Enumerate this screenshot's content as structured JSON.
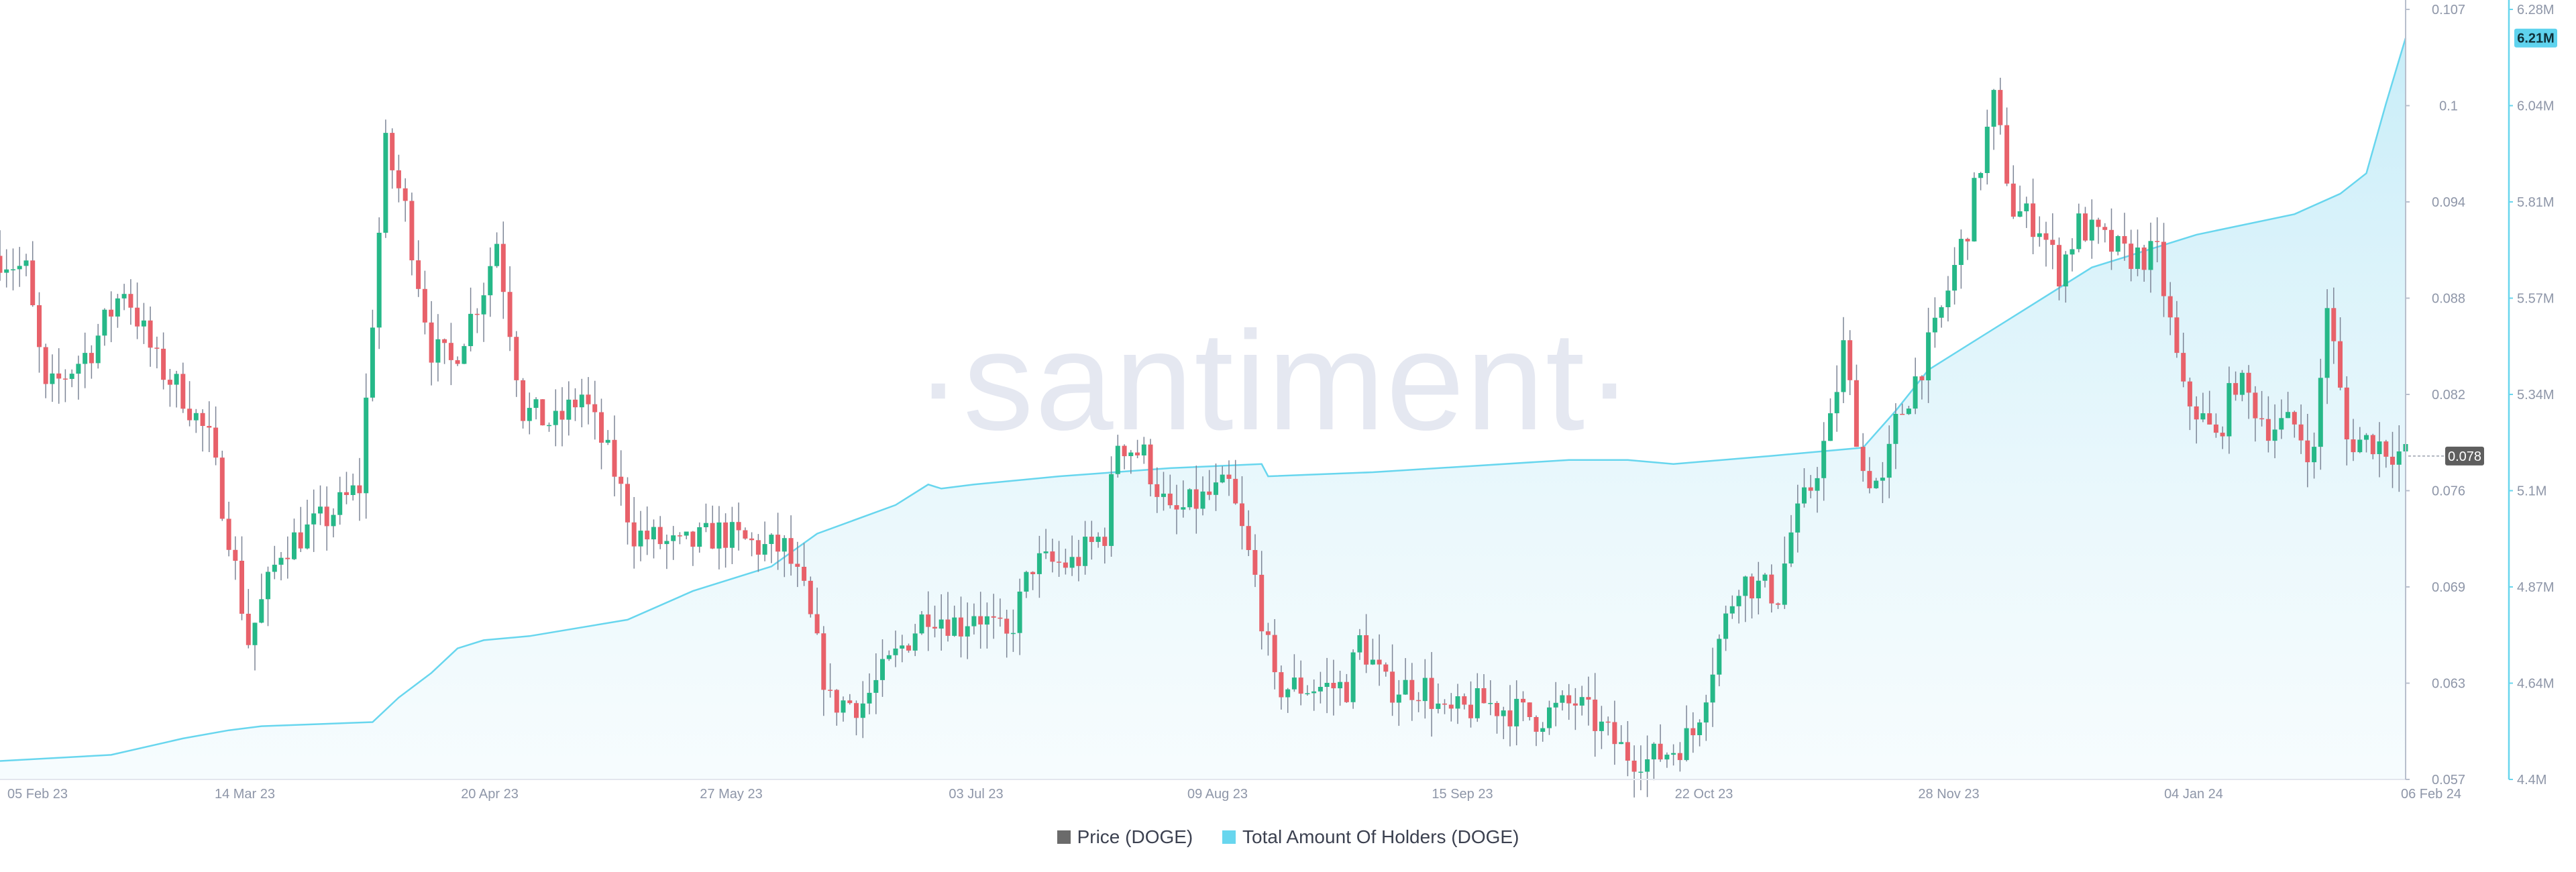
{
  "chart_data": {
    "type": "line",
    "watermark": "·santiment·",
    "x_ticks": [
      "05 Feb 23",
      "14 Mar 23",
      "20 Apr 23",
      "27 May 23",
      "03 Jul 23",
      "09 Aug 23",
      "15 Sep 23",
      "22 Oct 23",
      "28 Nov 23",
      "04 Jan 24",
      "06 Feb 24"
    ],
    "price_axis": {
      "ticks": [
        "0.107",
        "0.1",
        "0.094",
        "0.088",
        "0.082",
        "0.076",
        "0.069",
        "0.063",
        "0.057"
      ],
      "ylim": [
        0.057,
        0.107
      ],
      "current_label": "0.078",
      "current": 0.078
    },
    "holders_axis": {
      "ticks": [
        "6.28M",
        "6.04M",
        "5.81M",
        "5.57M",
        "5.34M",
        "5.1M",
        "4.87M",
        "4.64M",
        "4.4M"
      ],
      "ylim": [
        4.4,
        6.28
      ],
      "current_label": "6.21M",
      "current": 6.21
    },
    "series": [
      {
        "name": "Price (DOGE)",
        "kind": "candlestick",
        "unit": "USD",
        "date_start": "2023-02-03",
        "date_end": "2024-02-06",
        "close_waypoints": [
          {
            "x": "2023-02-03",
            "y": 0.091
          },
          {
            "x": "2023-02-07",
            "y": 0.09
          },
          {
            "x": "2023-02-10",
            "y": 0.082
          },
          {
            "x": "2023-02-17",
            "y": 0.085
          },
          {
            "x": "2023-02-22",
            "y": 0.089
          },
          {
            "x": "2023-02-27",
            "y": 0.084
          },
          {
            "x": "2023-03-03",
            "y": 0.082
          },
          {
            "x": "2023-03-07",
            "y": 0.079
          },
          {
            "x": "2023-03-10",
            "y": 0.073
          },
          {
            "x": "2023-03-13",
            "y": 0.066
          },
          {
            "x": "2023-03-18",
            "y": 0.072
          },
          {
            "x": "2023-03-25",
            "y": 0.074
          },
          {
            "x": "2023-03-30",
            "y": 0.076
          },
          {
            "x": "2023-04-03",
            "y": 0.098
          },
          {
            "x": "2023-04-06",
            "y": 0.094
          },
          {
            "x": "2023-04-10",
            "y": 0.085
          },
          {
            "x": "2023-04-13",
            "y": 0.084
          },
          {
            "x": "2023-04-18",
            "y": 0.089
          },
          {
            "x": "2023-04-20",
            "y": 0.092
          },
          {
            "x": "2023-04-24",
            "y": 0.081
          },
          {
            "x": "2023-04-29",
            "y": 0.08
          },
          {
            "x": "2023-05-03",
            "y": 0.082
          },
          {
            "x": "2023-05-08",
            "y": 0.077
          },
          {
            "x": "2023-05-11",
            "y": 0.073
          },
          {
            "x": "2023-05-18",
            "y": 0.072
          },
          {
            "x": "2023-05-24",
            "y": 0.073
          },
          {
            "x": "2023-05-31",
            "y": 0.072
          },
          {
            "x": "2023-06-03",
            "y": 0.072
          },
          {
            "x": "2023-06-06",
            "y": 0.069
          },
          {
            "x": "2023-06-10",
            "y": 0.062
          },
          {
            "x": "2023-06-15",
            "y": 0.062
          },
          {
            "x": "2023-06-20",
            "y": 0.065
          },
          {
            "x": "2023-06-25",
            "y": 0.068
          },
          {
            "x": "2023-06-30",
            "y": 0.067
          },
          {
            "x": "2023-07-02",
            "y": 0.068
          },
          {
            "x": "2023-07-07",
            "y": 0.066
          },
          {
            "x": "2023-07-11",
            "y": 0.071
          },
          {
            "x": "2023-07-17",
            "y": 0.071
          },
          {
            "x": "2023-07-22",
            "y": 0.073
          },
          {
            "x": "2023-07-24",
            "y": 0.079
          },
          {
            "x": "2023-07-28",
            "y": 0.078
          },
          {
            "x": "2023-08-01",
            "y": 0.074
          },
          {
            "x": "2023-08-05",
            "y": 0.075
          },
          {
            "x": "2023-08-10",
            "y": 0.076
          },
          {
            "x": "2023-08-14",
            "y": 0.07
          },
          {
            "x": "2023-08-17",
            "y": 0.063
          },
          {
            "x": "2023-08-22",
            "y": 0.063
          },
          {
            "x": "2023-08-28",
            "y": 0.063
          },
          {
            "x": "2023-08-30",
            "y": 0.066
          },
          {
            "x": "2023-09-03",
            "y": 0.063
          },
          {
            "x": "2023-09-09",
            "y": 0.063
          },
          {
            "x": "2023-09-12",
            "y": 0.061
          },
          {
            "x": "2023-09-18",
            "y": 0.062
          },
          {
            "x": "2023-09-26",
            "y": 0.061
          },
          {
            "x": "2023-10-02",
            "y": 0.062
          },
          {
            "x": "2023-10-09",
            "y": 0.059
          },
          {
            "x": "2023-10-12",
            "y": 0.058
          },
          {
            "x": "2023-10-17",
            "y": 0.059
          },
          {
            "x": "2023-10-20",
            "y": 0.06
          },
          {
            "x": "2023-10-24",
            "y": 0.066
          },
          {
            "x": "2023-10-27",
            "y": 0.07
          },
          {
            "x": "2023-11-02",
            "y": 0.069
          },
          {
            "x": "2023-11-04",
            "y": 0.073
          },
          {
            "x": "2023-11-07",
            "y": 0.076
          },
          {
            "x": "2023-11-10",
            "y": 0.08
          },
          {
            "x": "2023-11-12",
            "y": 0.085
          },
          {
            "x": "2023-11-15",
            "y": 0.077
          },
          {
            "x": "2023-11-18",
            "y": 0.076
          },
          {
            "x": "2023-11-20",
            "y": 0.08
          },
          {
            "x": "2023-11-26",
            "y": 0.086
          },
          {
            "x": "2023-12-01",
            "y": 0.093
          },
          {
            "x": "2023-12-05",
            "y": 0.101
          },
          {
            "x": "2023-12-08",
            "y": 0.094
          },
          {
            "x": "2023-12-12",
            "y": 0.093
          },
          {
            "x": "2023-12-15",
            "y": 0.09
          },
          {
            "x": "2023-12-18",
            "y": 0.093
          },
          {
            "x": "2023-12-25",
            "y": 0.091
          },
          {
            "x": "2023-12-30",
            "y": 0.091
          },
          {
            "x": "2024-01-03",
            "y": 0.082
          },
          {
            "x": "2024-01-05",
            "y": 0.081
          },
          {
            "x": "2024-01-08",
            "y": 0.079
          },
          {
            "x": "2024-01-11",
            "y": 0.083
          },
          {
            "x": "2024-01-16",
            "y": 0.08
          },
          {
            "x": "2024-01-20",
            "y": 0.08
          },
          {
            "x": "2024-01-23",
            "y": 0.078
          },
          {
            "x": "2024-01-25",
            "y": 0.088
          },
          {
            "x": "2024-01-28",
            "y": 0.079
          },
          {
            "x": "2024-02-01",
            "y": 0.079
          },
          {
            "x": "2024-02-06",
            "y": 0.078
          }
        ]
      },
      {
        "name": "Total Amount Of Holders (DOGE)",
        "kind": "area",
        "unit": "M holders",
        "points": [
          {
            "x": "2023-02-03",
            "y": 4.445
          },
          {
            "x": "2023-02-20",
            "y": 4.46
          },
          {
            "x": "2023-03-03",
            "y": 4.5
          },
          {
            "x": "2023-03-10",
            "y": 4.52
          },
          {
            "x": "2023-03-15",
            "y": 4.53
          },
          {
            "x": "2023-04-01",
            "y": 4.54
          },
          {
            "x": "2023-04-05",
            "y": 4.6
          },
          {
            "x": "2023-04-10",
            "y": 4.66
          },
          {
            "x": "2023-04-14",
            "y": 4.72
          },
          {
            "x": "2023-04-18",
            "y": 4.74
          },
          {
            "x": "2023-04-25",
            "y": 4.75
          },
          {
            "x": "2023-05-10",
            "y": 4.79
          },
          {
            "x": "2023-05-20",
            "y": 4.86
          },
          {
            "x": "2023-06-01",
            "y": 4.92
          },
          {
            "x": "2023-06-08",
            "y": 5.0
          },
          {
            "x": "2023-06-20",
            "y": 5.07
          },
          {
            "x": "2023-06-25",
            "y": 5.12
          },
          {
            "x": "2023-06-27",
            "y": 5.11
          },
          {
            "x": "2023-07-02",
            "y": 5.12
          },
          {
            "x": "2023-07-15",
            "y": 5.14
          },
          {
            "x": "2023-08-01",
            "y": 5.16
          },
          {
            "x": "2023-08-15",
            "y": 5.17
          },
          {
            "x": "2023-08-16",
            "y": 5.14
          },
          {
            "x": "2023-09-01",
            "y": 5.15
          },
          {
            "x": "2023-10-01",
            "y": 5.18
          },
          {
            "x": "2023-10-10",
            "y": 5.18
          },
          {
            "x": "2023-10-17",
            "y": 5.17
          },
          {
            "x": "2023-11-01",
            "y": 5.19
          },
          {
            "x": "2023-11-15",
            "y": 5.21
          },
          {
            "x": "2023-11-20",
            "y": 5.3
          },
          {
            "x": "2023-11-25",
            "y": 5.4
          },
          {
            "x": "2023-12-03",
            "y": 5.48
          },
          {
            "x": "2023-12-10",
            "y": 5.55
          },
          {
            "x": "2023-12-20",
            "y": 5.65
          },
          {
            "x": "2024-01-05",
            "y": 5.73
          },
          {
            "x": "2024-01-20",
            "y": 5.78
          },
          {
            "x": "2024-01-27",
            "y": 5.83
          },
          {
            "x": "2024-01-31",
            "y": 5.88
          },
          {
            "x": "2024-02-03",
            "y": 6.05
          },
          {
            "x": "2024-02-06",
            "y": 6.21
          }
        ]
      }
    ]
  },
  "legend": {
    "items": [
      {
        "label": "Price (DOGE)",
        "color": "#6b6b6b"
      },
      {
        "label": "Total Amount Of Holders (DOGE)",
        "color": "#68d6ee"
      }
    ]
  },
  "colors": {
    "up": "#26b888",
    "down": "#e8616a",
    "wick": "#7d8596",
    "holders_line": "#68d6ee",
    "axis": "#b8bfcd",
    "price_badge": "#5e5e5e",
    "holders_badge": "#5fd3ee"
  }
}
